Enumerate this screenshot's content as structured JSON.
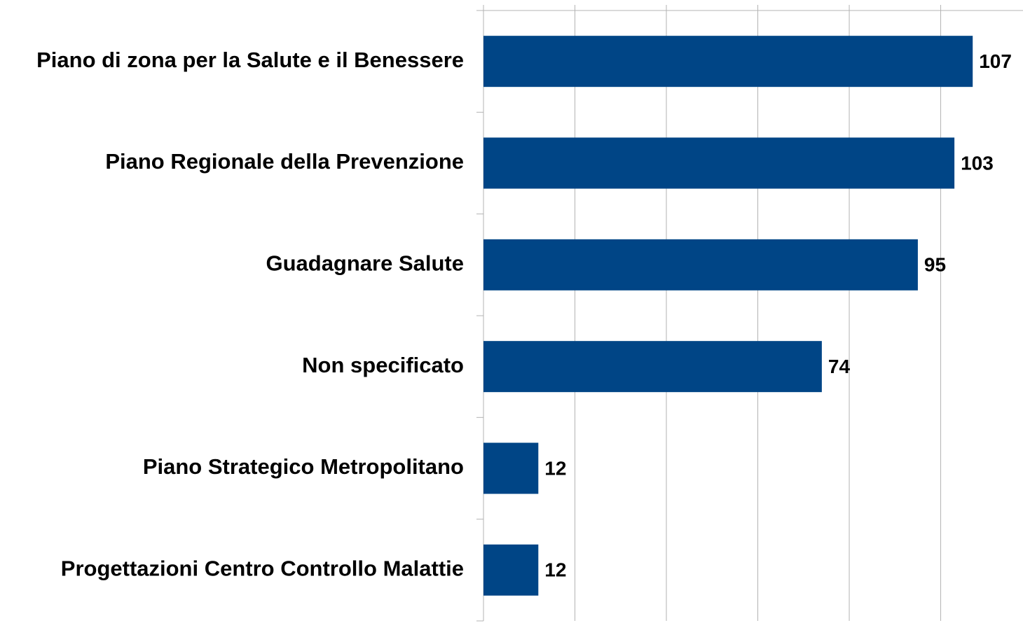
{
  "chart_data": {
    "type": "hbar",
    "categories": [
      "Piano di zona per la Salute e il Benessere",
      "Piano Regionale della Prevenzione",
      "Guadagnare Salute",
      "Non specificato",
      "Piano Strategico Metropolitano",
      "Progettazioni Centro Controllo Malattie"
    ],
    "values": [
      107,
      103,
      95,
      74,
      12,
      12
    ],
    "color": "#004586",
    "xlim": [
      0,
      118
    ],
    "xticks": [
      0,
      20,
      40,
      60,
      80,
      100
    ],
    "grid": true
  }
}
